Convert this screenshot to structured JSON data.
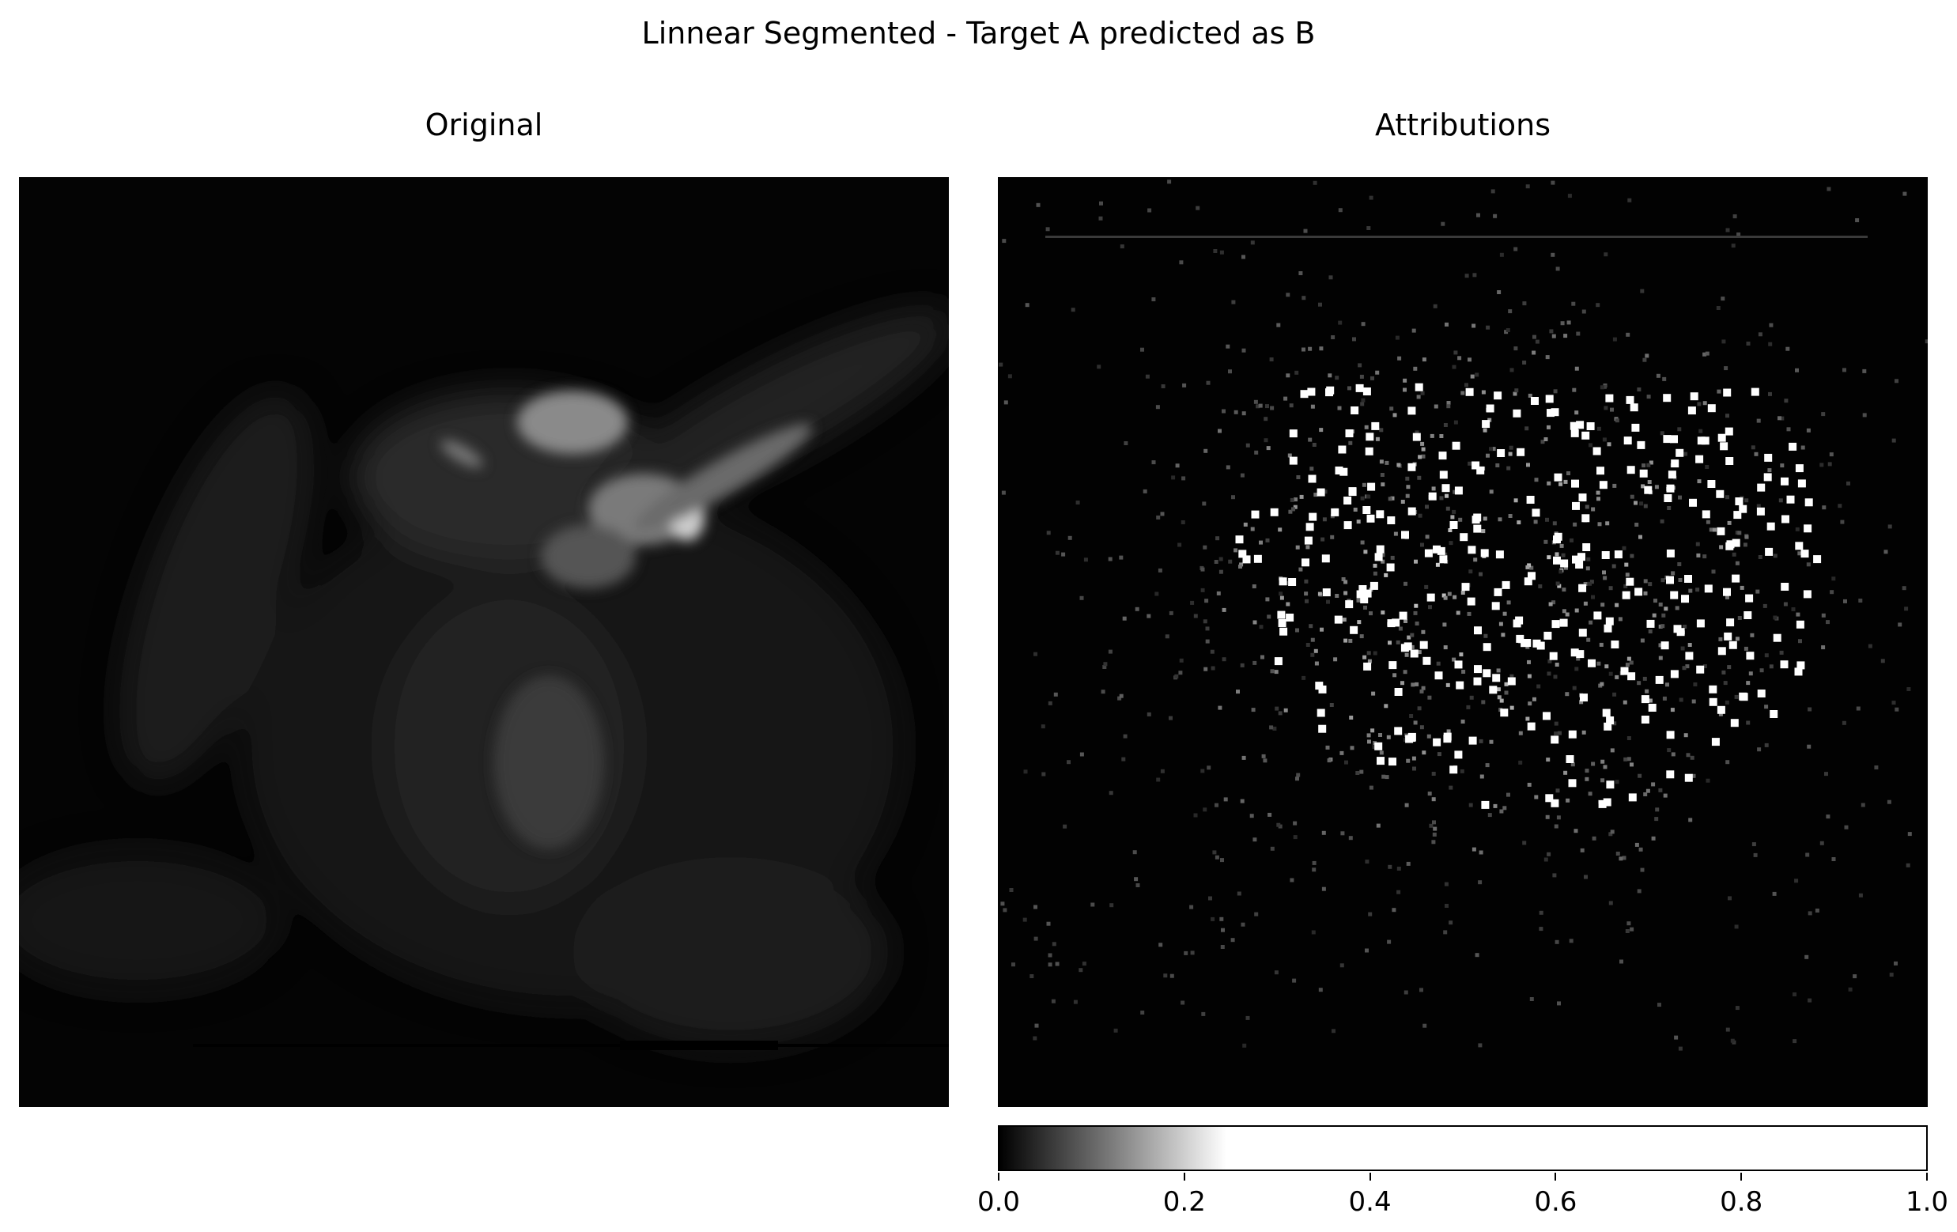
{
  "figure": {
    "title": "Linnear Segmented - Target A predicted as B"
  },
  "panels": [
    {
      "title": "Original",
      "colormap": "gray"
    },
    {
      "title": "Attributions",
      "colormap": "gray"
    }
  ],
  "colorbar": {
    "ticks": [
      "0.0",
      "0.2",
      "0.4",
      "0.6",
      "0.8",
      "1.0"
    ],
    "colors": {
      "low": "#000000",
      "high": "#ffffff"
    }
  }
}
